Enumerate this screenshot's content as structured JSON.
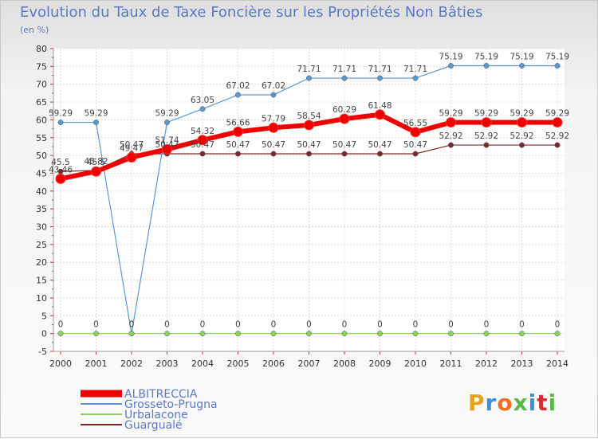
{
  "chart_data": {
    "type": "line",
    "title": "Evolution du Taux de Taxe Foncière sur les Propriétés Non Bâties",
    "ylabel": "(en %)",
    "xlabel": "",
    "x": [
      "2000",
      "2001",
      "2002",
      "2003",
      "2004",
      "2005",
      "2006",
      "2007",
      "2008",
      "2009",
      "2010",
      "2011",
      "2012",
      "2013",
      "2014"
    ],
    "ylim": [
      -5,
      80
    ],
    "yticks": [
      "-5",
      "0",
      "5",
      "10",
      "15",
      "20",
      "25",
      "30",
      "35",
      "40",
      "45",
      "50",
      "55",
      "60",
      "65",
      "70",
      "75",
      "80"
    ],
    "grid": true,
    "series": [
      {
        "name": "ALBITRECCIA",
        "color": "#ee0000",
        "values": [
          43.46,
          45.5,
          49.47,
          51.74,
          54.32,
          56.66,
          57.79,
          58.54,
          60.29,
          61.48,
          56.55,
          59.29,
          59.29,
          59.29,
          59.29
        ],
        "labels": [
          "43.46",
          "45.5",
          "49.47",
          "51.74",
          "54.32",
          "56.66",
          "57.79",
          "58.54",
          "60.29",
          "61.48",
          "56.55",
          "59.29",
          "59.29",
          "59.29",
          "59.29"
        ]
      },
      {
        "name": "Grosseto-Prugna",
        "color": "#5b98d0",
        "values": [
          59.29,
          59.29,
          0,
          59.29,
          63.05,
          67.02,
          67.02,
          71.71,
          71.71,
          71.71,
          71.71,
          75.19,
          75.19,
          75.19,
          75.19
        ],
        "labels": [
          "59.29",
          "59.29",
          "0",
          "59.29",
          "63.05",
          "67.02",
          "67.02",
          "71.71",
          "71.71",
          "71.71",
          "71.71",
          "75.19",
          "75.19",
          "75.19",
          "75.19"
        ]
      },
      {
        "name": "Urbalacone",
        "color": "#88d65e",
        "values": [
          0,
          0,
          0,
          0,
          0,
          0,
          0,
          0,
          0,
          0,
          0,
          0,
          0,
          0,
          0
        ],
        "labels": [
          "0",
          "0",
          "0",
          "0",
          "0",
          "0",
          "0",
          "0",
          "0",
          "0",
          "0",
          "0",
          "0",
          "0",
          "0"
        ]
      },
      {
        "name": "Guargualé",
        "color": "#7a2a2a",
        "values": [
          45.5,
          45.82,
          50.47,
          50.47,
          50.47,
          50.47,
          50.47,
          50.47,
          50.47,
          50.47,
          50.47,
          52.92,
          52.92,
          52.92,
          52.92
        ],
        "labels": [
          "45.5",
          "45.82",
          "50.47",
          "50.47",
          "50.47",
          "50.47",
          "50.47",
          "50.47",
          "50.47",
          "50.47",
          "50.47",
          "52.92",
          "52.92",
          "52.92",
          "52.92"
        ]
      }
    ]
  },
  "logo": {
    "text": "Proxiti"
  }
}
